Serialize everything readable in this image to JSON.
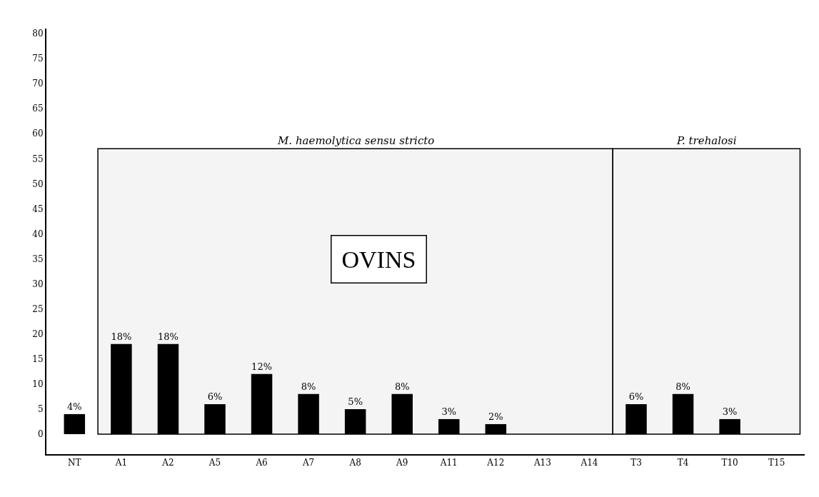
{
  "chart_data": {
    "type": "bar",
    "categories": [
      "NT",
      "A1",
      "A2",
      "A5",
      "A6",
      "A7",
      "A8",
      "A9",
      "A11",
      "A12",
      "A13",
      "A14",
      "T3",
      "T4",
      "T10",
      "T15"
    ],
    "values": [
      4,
      18,
      18,
      6,
      12,
      8,
      5,
      8,
      3,
      2,
      null,
      null,
      6,
      8,
      3,
      null
    ],
    "value_labels": [
      "4%",
      "18%",
      "18%",
      "6%",
      "12%",
      "8%",
      "5%",
      "8%",
      "3%",
      "2%",
      null,
      null,
      "6%",
      "8%",
      "3%",
      null
    ],
    "color": "#000000",
    "ylim": [
      -4,
      81
    ],
    "yticks": [
      0,
      5,
      10,
      15,
      20,
      25,
      30,
      35,
      40,
      45,
      50,
      55,
      60,
      65,
      70,
      75,
      80
    ],
    "grid": false,
    "bands": [
      {
        "axis": "x",
        "from": "A1",
        "to": "A14",
        "label": "M. haemolytica sensu stricto",
        "color": "#000000"
      },
      {
        "axis": "x",
        "from": "T3",
        "to": "T15",
        "label": "P. trehalosi",
        "color": "#000000"
      }
    ],
    "annotations": [
      "OVINS"
    ]
  }
}
